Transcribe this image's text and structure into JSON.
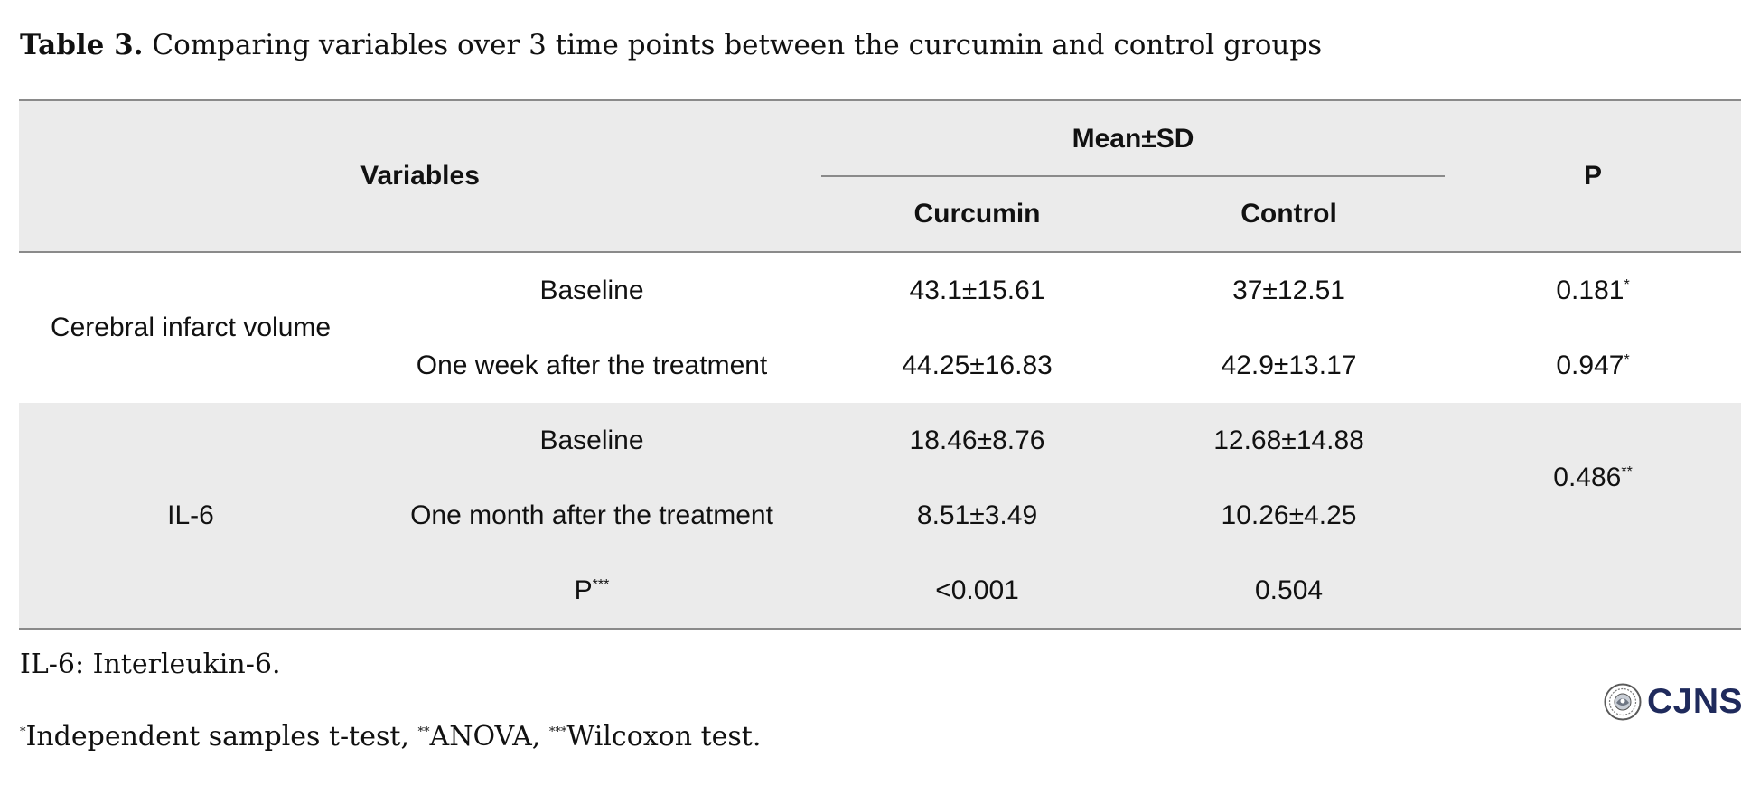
{
  "caption": {
    "label": "Table 3.",
    "text": "Comparing variables over 3 time points between the curcumin and control groups"
  },
  "table": {
    "headers": {
      "variables": "Variables",
      "mean_sd": "Mean±SD",
      "curcumin": "Curcumin",
      "control": "Control",
      "p": "P"
    },
    "group1": {
      "name": "Cerebral infarct volume",
      "rows": [
        {
          "time": "Baseline",
          "curcumin": "43.1±15.61",
          "control": "37±12.51",
          "p": "0.181",
          "p_mark": "*"
        },
        {
          "time": "One week after the treatment",
          "curcumin": "44.25±16.83",
          "control": "42.9±13.17",
          "p": "0.947",
          "p_mark": "*"
        }
      ]
    },
    "group2": {
      "name": "IL-6",
      "p": "0.486",
      "p_mark": "**",
      "rows": [
        {
          "time": "Baseline",
          "curcumin": "18.46±8.76",
          "control": "12.68±14.88"
        },
        {
          "time": "One month after the treatment",
          "curcumin": "8.51±3.49",
          "control": "10.26±4.25"
        },
        {
          "time": "P",
          "time_mark": "***",
          "curcumin": "<0.001",
          "control": "0.504"
        }
      ]
    }
  },
  "footnotes": {
    "abbrev": "IL-6: Interleukin-6.",
    "mark1": "*",
    "test1": "Independent samples t-test, ",
    "mark2": "**",
    "test2": "ANOVA, ",
    "mark3": "***",
    "test3": "Wilcoxon test."
  },
  "logo": {
    "text": "CJNS",
    "icon": "seal-icon",
    "color": "#1f2a5c"
  }
}
